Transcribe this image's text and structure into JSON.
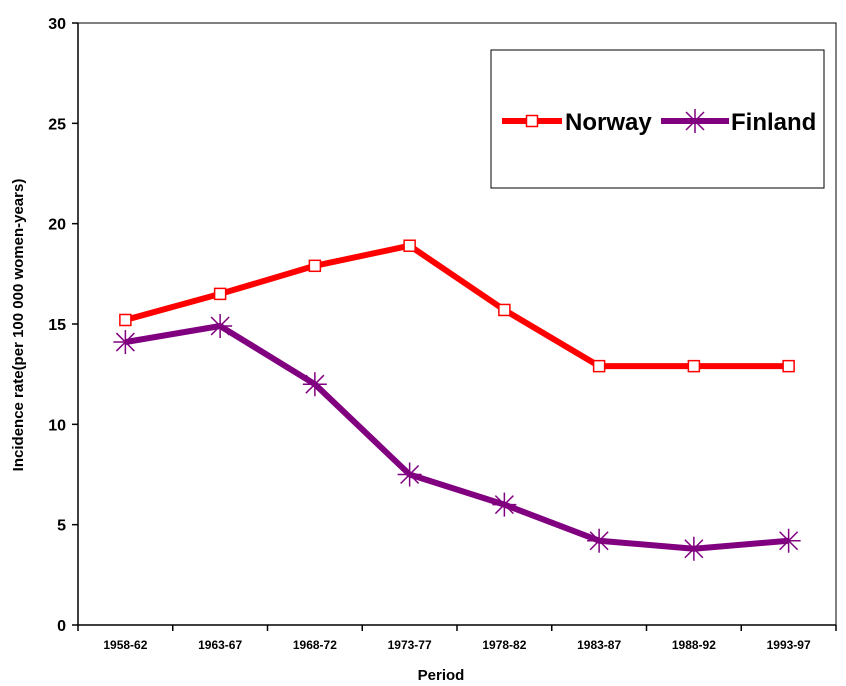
{
  "chart_data": {
    "type": "line",
    "title": "",
    "xlabel": "Period",
    "ylabel": "Incidence rate(per 100 000 women-years)",
    "categories": [
      "1958-62",
      "1963-67",
      "1968-72",
      "1973-77",
      "1978-82",
      "1983-87",
      "1988-92",
      "1993-97"
    ],
    "ylim": [
      0,
      30
    ],
    "yticks": [
      "0",
      "5",
      "10",
      "15",
      "20",
      "25",
      "30"
    ],
    "grid": false,
    "legend": "top-right",
    "series": [
      {
        "name": "Norway",
        "values": [
          15.2,
          16.5,
          17.9,
          18.9,
          15.7,
          12.9,
          12.9,
          12.9
        ],
        "color": "#ff0000",
        "marker": "open-square"
      },
      {
        "name": "Finland",
        "values": [
          14.1,
          14.9,
          12.0,
          7.5,
          6.0,
          4.2,
          3.8,
          4.2
        ],
        "color": "#800080",
        "marker": "asterisk"
      }
    ]
  }
}
